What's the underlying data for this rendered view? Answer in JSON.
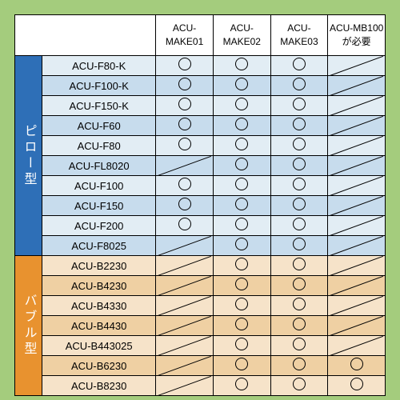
{
  "columns": [
    "ACU-\nMAKE01",
    "ACU-\nMAKE02",
    "ACU-\nMAKE03",
    "ACU-MB100\nが必要"
  ],
  "categories": [
    {
      "label": "ピロー型",
      "bg": "#2e6fb7",
      "row_bg_even": "#e2edf4",
      "row_bg_odd": "#c7dced",
      "rows": [
        {
          "name": "ACU-F80-K",
          "cells": [
            "o",
            "o",
            "o",
            "s"
          ]
        },
        {
          "name": "ACU-F100-K",
          "cells": [
            "o",
            "o",
            "o",
            "s"
          ]
        },
        {
          "name": "ACU-F150-K",
          "cells": [
            "o",
            "o",
            "o",
            "s"
          ]
        },
        {
          "name": "ACU-F60",
          "cells": [
            "o",
            "o",
            "o",
            "s"
          ]
        },
        {
          "name": "ACU-F80",
          "cells": [
            "o",
            "o",
            "o",
            "s"
          ]
        },
        {
          "name": "ACU-FL8020",
          "cells": [
            "s",
            "o",
            "o",
            "s"
          ]
        },
        {
          "name": "ACU-F100",
          "cells": [
            "o",
            "o",
            "o",
            "s"
          ]
        },
        {
          "name": "ACU-F150",
          "cells": [
            "o",
            "o",
            "o",
            "s"
          ]
        },
        {
          "name": "ACU-F200",
          "cells": [
            "o",
            "o",
            "o",
            "s"
          ]
        },
        {
          "name": "ACU-F8025",
          "cells": [
            "s",
            "o",
            "o",
            "s"
          ]
        }
      ]
    },
    {
      "label": "バブル型",
      "bg": "#e8922f",
      "row_bg_even": "#f6e3c9",
      "row_bg_odd": "#efd0a3",
      "rows": [
        {
          "name": "ACU-B2230",
          "cells": [
            "s",
            "o",
            "o",
            "s"
          ]
        },
        {
          "name": "ACU-B4230",
          "cells": [
            "s",
            "o",
            "o",
            "s"
          ]
        },
        {
          "name": "ACU-B4330",
          "cells": [
            "s",
            "o",
            "o",
            "s"
          ]
        },
        {
          "name": "ACU-B4430",
          "cells": [
            "s",
            "o",
            "o",
            "s"
          ]
        },
        {
          "name": "ACU-B443025",
          "cells": [
            "s",
            "o",
            "o",
            "s"
          ]
        },
        {
          "name": "ACU-B6230",
          "cells": [
            "s",
            "o",
            "o",
            "o"
          ]
        },
        {
          "name": "ACU-B8230",
          "cells": [
            "s",
            "o",
            "o",
            "o"
          ]
        }
      ]
    }
  ]
}
